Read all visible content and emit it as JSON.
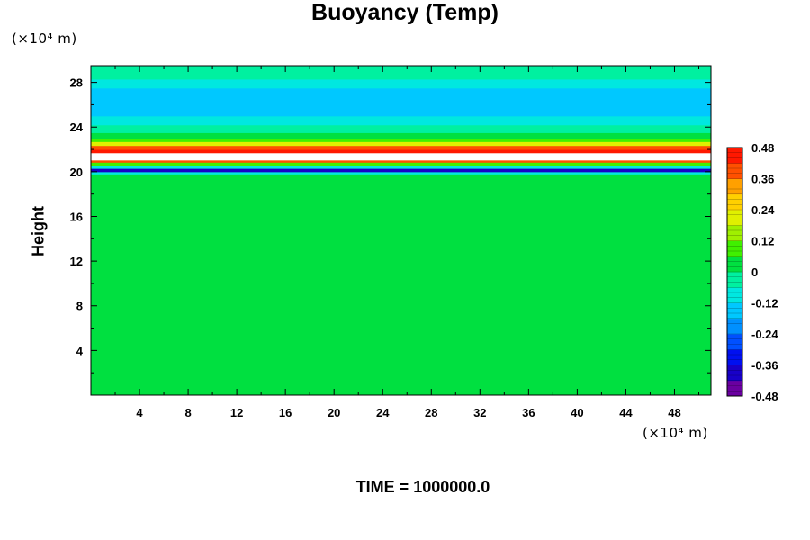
{
  "chart_data": {
    "type": "heatmap",
    "title": "Buoyancy (Temp)",
    "ylabel": "Height",
    "x_unit": "(×10⁴ m)",
    "y_unit": "(×10⁴ m)",
    "footer": "TIME = 1000000.0",
    "xlim": [
      0,
      51
    ],
    "ylim": [
      0,
      29.5
    ],
    "x_ticks": [
      4,
      8,
      12,
      16,
      20,
      24,
      28,
      32,
      36,
      40,
      44,
      48
    ],
    "y_ticks": [
      4,
      8,
      12,
      16,
      20,
      24,
      28
    ],
    "colorbar": {
      "range": [
        -0.48,
        0.48
      ],
      "labels": [
        "0.48",
        "0.36",
        "0.24",
        "0.12",
        "0",
        "-0.12",
        "-0.24",
        "-0.36",
        "-0.48"
      ]
    },
    "layers": [
      {
        "y0": 0,
        "y1": 19.8,
        "value": 0.0
      },
      {
        "y0": 19.8,
        "y1": 20.0,
        "value": -0.1
      },
      {
        "y0": 20.0,
        "y1": 20.3,
        "value": -0.38
      },
      {
        "y0": 20.3,
        "y1": 20.55,
        "value": -0.08
      },
      {
        "y0": 20.55,
        "y1": 20.85,
        "value": 0.1
      },
      {
        "y0": 20.85,
        "y1": 21.05,
        "value": 0.4
      },
      {
        "y0": 21.05,
        "y1": 21.7,
        "value": 0.55
      },
      {
        "y0": 21.7,
        "y1": 22.0,
        "value": 0.42
      },
      {
        "y0": 22.0,
        "y1": 22.35,
        "value": 0.38
      },
      {
        "y0": 22.35,
        "y1": 22.7,
        "value": 0.2
      },
      {
        "y0": 22.7,
        "y1": 23.0,
        "value": 0.1
      },
      {
        "y0": 23.0,
        "y1": 23.5,
        "value": 0.02
      },
      {
        "y0": 23.5,
        "y1": 24.2,
        "value": -0.05
      },
      {
        "y0": 24.2,
        "y1": 25.0,
        "value": -0.1
      },
      {
        "y0": 25.0,
        "y1": 26.5,
        "value": -0.15
      },
      {
        "y0": 26.5,
        "y1": 27.5,
        "value": -0.13
      },
      {
        "y0": 27.5,
        "y1": 28.3,
        "value": -0.1
      },
      {
        "y0": 28.3,
        "y1": 29.5,
        "value": -0.05
      }
    ]
  }
}
